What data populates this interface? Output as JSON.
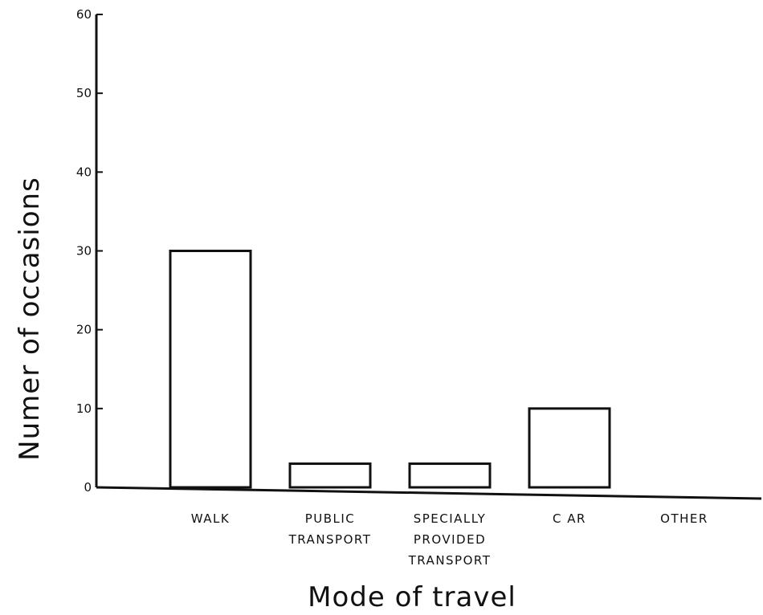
{
  "chart_data": {
    "type": "bar",
    "title": "",
    "xlabel": "Mode of travel",
    "ylabel": "Numer of occasions",
    "ylim": [
      0,
      60
    ],
    "yticks": [
      0,
      10,
      20,
      30,
      40,
      50,
      60
    ],
    "categories": [
      [
        "WALK"
      ],
      [
        "PUBLIC",
        "TRANSPORT"
      ],
      [
        "SPECIALLY",
        "PROVIDED",
        "TRANSPORT"
      ],
      [
        "C AR"
      ],
      [
        "OTHER"
      ]
    ],
    "values": [
      30,
      3,
      3,
      10,
      0
    ],
    "grid": false,
    "legend": "none",
    "colors": {
      "bar_fill": "#ffffff",
      "bar_stroke": "#111111",
      "axis": "#111111"
    }
  }
}
